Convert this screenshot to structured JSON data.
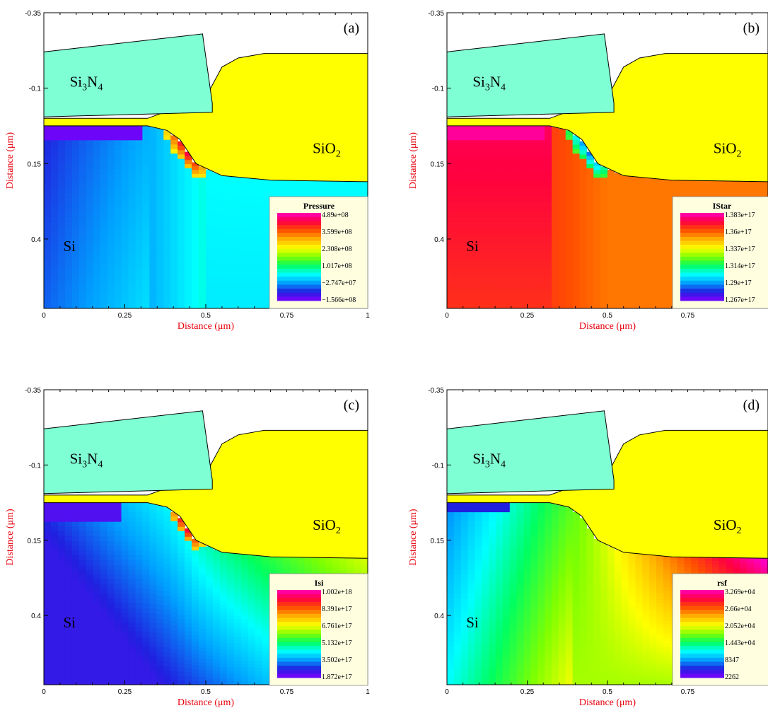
{
  "chart_data": [
    {
      "type": "heatmap",
      "panel": "(a)",
      "xlabel": "Distance (μm)",
      "ylabel": "Distance (μm)",
      "x_ticks": [
        "0",
        "0.25",
        "0.5",
        "0.75",
        "1"
      ],
      "y_ticks": [
        "-0.35",
        "-0.1",
        "0.15",
        "0.4"
      ],
      "xlim": [
        0,
        1
      ],
      "ylim": [
        0.63,
        -0.35
      ],
      "region_labels": {
        "nitride": "Si",
        "nitride_sub": "3",
        "nitride_mid": "N",
        "nitride_sub2": "4",
        "oxide": "SiO",
        "oxide_sub": "2",
        "silicon": "Si"
      },
      "legend": {
        "title": "Pressure",
        "values": [
          "4.89e+08",
          "3.599e+08",
          "2.308e+08",
          "1.017e+08",
          "−2.747e+07",
          "−1.566e+08"
        ],
        "placement": "bottom-right"
      },
      "field": "pressure"
    },
    {
      "type": "heatmap",
      "panel": "(b)",
      "xlabel": "Distance (μm)",
      "ylabel": "Distance (μm)",
      "x_ticks": [
        "0",
        "0.25",
        "0.5",
        "0.75"
      ],
      "y_ticks": [
        "-0.35",
        "-0.1",
        "0.15",
        "0.4"
      ],
      "xlim": [
        0,
        1
      ],
      "ylim": [
        0.63,
        -0.35
      ],
      "region_labels": {
        "nitride": "Si",
        "nitride_sub": "3",
        "nitride_mid": "N",
        "nitride_sub2": "4",
        "oxide": "SiO",
        "oxide_sub": "2",
        "silicon": "Si"
      },
      "legend": {
        "title": "IStar",
        "values": [
          "1.383e+17",
          "1.36e+17",
          "1.337e+17",
          "1.314e+17",
          "1.29e+17",
          "1.267e+17"
        ],
        "placement": "bottom-right"
      },
      "field": "istar"
    },
    {
      "type": "heatmap",
      "panel": "(c)",
      "xlabel": "Distance (μm)",
      "ylabel": "Distance (μm)",
      "x_ticks": [
        "0",
        "0.25",
        "0.5",
        "0.75",
        "1"
      ],
      "y_ticks": [
        "-0.35",
        "-0.1",
        "0.15",
        "0.4"
      ],
      "xlim": [
        0,
        1
      ],
      "ylim": [
        0.63,
        -0.35
      ],
      "region_labels": {
        "nitride": "Si",
        "nitride_sub": "3",
        "nitride_mid": "N",
        "nitride_sub2": "4",
        "oxide": "SiO",
        "oxide_sub": "2",
        "silicon": "Si"
      },
      "legend": {
        "title": "Isi",
        "values": [
          "1.002e+18",
          "8.391e+17",
          "6.761e+17",
          "5.132e+17",
          "3.502e+17",
          "1.872e+17"
        ],
        "placement": "bottom-right"
      },
      "field": "isi"
    },
    {
      "type": "heatmap",
      "panel": "(d)",
      "xlabel": "Distance (μm)",
      "ylabel": "Distance (μm)",
      "x_ticks": [
        "0",
        "0.25",
        "0.5",
        "0.75"
      ],
      "y_ticks": [
        "-0.35",
        "-0.1",
        "0.15",
        "0.4"
      ],
      "xlim": [
        0,
        1
      ],
      "ylim": [
        0.63,
        -0.35
      ],
      "region_labels": {
        "nitride": "Si",
        "nitride_sub": "3",
        "nitride_mid": "N",
        "nitride_sub2": "4",
        "oxide": "SiO",
        "oxide_sub": "2",
        "silicon": "Si"
      },
      "legend": {
        "title": "rsf",
        "values": [
          "3.269e+04",
          "2.66e+04",
          "2.052e+04",
          "1.443e+04",
          "8347",
          "2262"
        ],
        "placement": "bottom-right"
      },
      "field": "rsf"
    }
  ],
  "colors": {
    "nitride": "#7fffd4",
    "oxide": "#ffff00",
    "axis_title": "#e8000b",
    "legend_bg": "#ffffe0",
    "colormap": [
      "#8000ff",
      "#2020e0",
      "#00a0ff",
      "#00ffff",
      "#00ff60",
      "#80ff00",
      "#ffff00",
      "#ffb000",
      "#ff5000",
      "#ff0040",
      "#ff00c0"
    ]
  }
}
